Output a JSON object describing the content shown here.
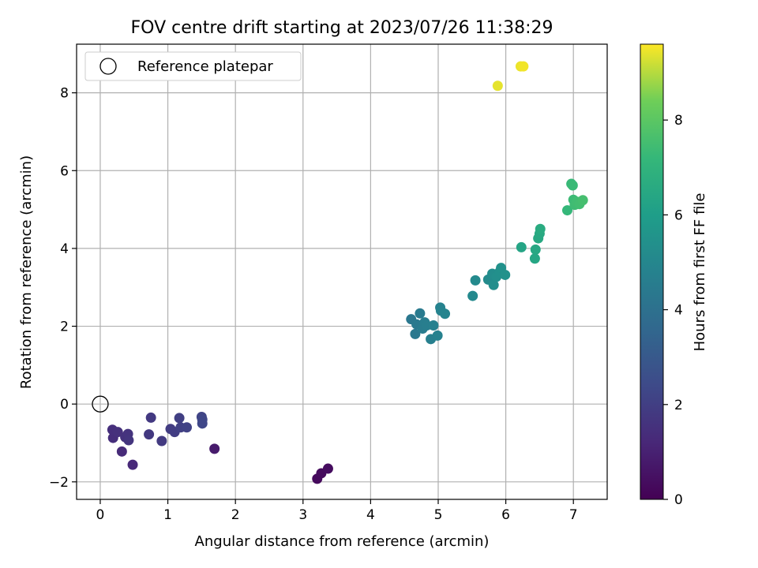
{
  "chart_data": {
    "type": "scatter",
    "title": "FOV centre drift starting at 2023/07/26 11:38:29",
    "xlabel": "Angular distance from reference (arcmin)",
    "ylabel": "Rotation from reference (arcmin)",
    "xlim": [
      -0.35,
      7.5
    ],
    "ylim": [
      -2.45,
      9.25
    ],
    "xticks": [
      0,
      1,
      2,
      3,
      4,
      5,
      6,
      7
    ],
    "yticks": [
      -2,
      0,
      2,
      4,
      6,
      8
    ],
    "grid": true,
    "legend": {
      "placement": "top-left",
      "entries": [
        "Reference platepar"
      ]
    },
    "reference_point": {
      "x": 0,
      "y": 0,
      "label": "Reference platepar"
    },
    "colorbar": {
      "label": "Hours from first FF file",
      "range": [
        0,
        9.6
      ],
      "ticks": [
        0,
        2,
        4,
        6,
        8
      ],
      "colormap": "viridis"
    },
    "points": [
      {
        "x": 3.21,
        "y": -1.92,
        "t": 0.25
      },
      {
        "x": 3.27,
        "y": -1.78,
        "t": 0.3
      },
      {
        "x": 3.37,
        "y": -1.66,
        "t": 0.35
      },
      {
        "x": 1.69,
        "y": -1.15,
        "t": 0.8
      },
      {
        "x": 0.48,
        "y": -1.56,
        "t": 1.25
      },
      {
        "x": 0.32,
        "y": -1.22,
        "t": 1.3
      },
      {
        "x": 0.19,
        "y": -0.87,
        "t": 1.4
      },
      {
        "x": 0.18,
        "y": -0.66,
        "t": 1.45
      },
      {
        "x": 0.26,
        "y": -0.72,
        "t": 1.5
      },
      {
        "x": 0.37,
        "y": -0.85,
        "t": 1.55
      },
      {
        "x": 0.41,
        "y": -0.77,
        "t": 1.6
      },
      {
        "x": 0.42,
        "y": -0.93,
        "t": 1.65
      },
      {
        "x": 0.72,
        "y": -0.78,
        "t": 1.75
      },
      {
        "x": 0.75,
        "y": -0.35,
        "t": 1.8
      },
      {
        "x": 0.91,
        "y": -0.95,
        "t": 1.85
      },
      {
        "x": 1.04,
        "y": -0.64,
        "t": 1.9
      },
      {
        "x": 1.1,
        "y": -0.72,
        "t": 1.95
      },
      {
        "x": 1.17,
        "y": -0.36,
        "t": 2.0
      },
      {
        "x": 1.19,
        "y": -0.6,
        "t": 2.05
      },
      {
        "x": 1.28,
        "y": -0.6,
        "t": 2.1
      },
      {
        "x": 1.5,
        "y": -0.33,
        "t": 2.2
      },
      {
        "x": 1.51,
        "y": -0.4,
        "t": 2.25
      },
      {
        "x": 1.51,
        "y": -0.5,
        "t": 2.3
      },
      {
        "x": 4.6,
        "y": 2.18,
        "t": 4.3
      },
      {
        "x": 4.66,
        "y": 1.8,
        "t": 4.35
      },
      {
        "x": 4.68,
        "y": 2.05,
        "t": 4.4
      },
      {
        "x": 4.73,
        "y": 2.33,
        "t": 4.45
      },
      {
        "x": 4.77,
        "y": 1.94,
        "t": 4.5
      },
      {
        "x": 4.8,
        "y": 2.1,
        "t": 4.55
      },
      {
        "x": 4.83,
        "y": 2.02,
        "t": 4.6
      },
      {
        "x": 4.89,
        "y": 1.67,
        "t": 4.65
      },
      {
        "x": 4.93,
        "y": 2.02,
        "t": 4.7
      },
      {
        "x": 4.99,
        "y": 1.76,
        "t": 4.75
      },
      {
        "x": 5.03,
        "y": 2.48,
        "t": 4.8
      },
      {
        "x": 5.04,
        "y": 2.4,
        "t": 4.85
      },
      {
        "x": 5.1,
        "y": 2.32,
        "t": 4.9
      },
      {
        "x": 5.51,
        "y": 2.78,
        "t": 5.1
      },
      {
        "x": 5.55,
        "y": 3.18,
        "t": 5.15
      },
      {
        "x": 5.74,
        "y": 3.2,
        "t": 5.2
      },
      {
        "x": 5.8,
        "y": 3.35,
        "t": 5.25
      },
      {
        "x": 5.82,
        "y": 3.06,
        "t": 5.3
      },
      {
        "x": 5.86,
        "y": 3.27,
        "t": 5.35
      },
      {
        "x": 5.91,
        "y": 3.4,
        "t": 5.4
      },
      {
        "x": 5.93,
        "y": 3.5,
        "t": 5.45
      },
      {
        "x": 5.99,
        "y": 3.32,
        "t": 5.5
      },
      {
        "x": 6.23,
        "y": 4.03,
        "t": 6.3
      },
      {
        "x": 6.43,
        "y": 3.74,
        "t": 6.4
      },
      {
        "x": 6.44,
        "y": 3.97,
        "t": 6.45
      },
      {
        "x": 6.48,
        "y": 4.26,
        "t": 6.5
      },
      {
        "x": 6.5,
        "y": 4.38,
        "t": 6.55
      },
      {
        "x": 6.51,
        "y": 4.5,
        "t": 6.6
      },
      {
        "x": 6.91,
        "y": 4.98,
        "t": 7.2
      },
      {
        "x": 6.97,
        "y": 5.66,
        "t": 7.25
      },
      {
        "x": 6.99,
        "y": 5.62,
        "t": 7.3
      },
      {
        "x": 7.0,
        "y": 5.25,
        "t": 7.35
      },
      {
        "x": 7.02,
        "y": 5.12,
        "t": 7.4
      },
      {
        "x": 7.05,
        "y": 5.2,
        "t": 7.45
      },
      {
        "x": 7.09,
        "y": 5.14,
        "t": 7.5
      },
      {
        "x": 7.14,
        "y": 5.24,
        "t": 7.55
      },
      {
        "x": 5.88,
        "y": 8.18,
        "t": 9.4
      },
      {
        "x": 6.22,
        "y": 8.68,
        "t": 9.45
      },
      {
        "x": 6.26,
        "y": 8.68,
        "t": 9.5
      }
    ]
  }
}
